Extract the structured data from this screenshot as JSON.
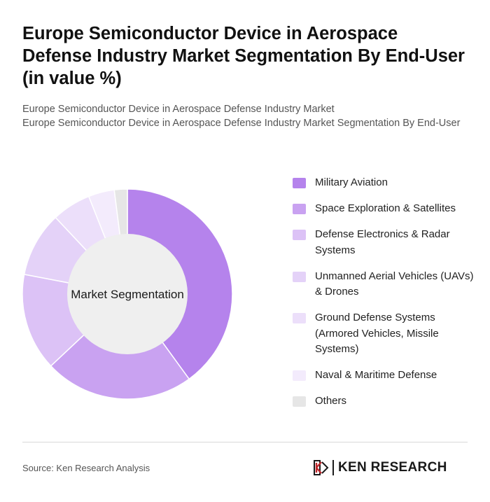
{
  "header": {
    "title": "Europe Semiconductor Device in Aerospace Defense Industry Market Segmentation By End-User (in value %)",
    "subtitle_line1": "Europe Semiconductor Device in Aerospace Defense Industry Market",
    "subtitle_line2": "Europe Semiconductor Device in Aerospace Defense Industry Market Segmentation By End-User"
  },
  "chart_data": {
    "type": "pie",
    "variant": "donut",
    "center_label": "Market Segmentation",
    "legend_position": "right",
    "slices": [
      {
        "name": "Military Aviation",
        "value": 40,
        "color": "#b583ec"
      },
      {
        "name": "Space Exploration & Satellites",
        "value": 23,
        "color": "#c9a2f1"
      },
      {
        "name": "Defense Electronics & Radar Systems",
        "value": 15,
        "color": "#dcc2f6"
      },
      {
        "name": "Unmanned Aerial Vehicles (UAVs) & Drones",
        "value": 10,
        "color": "#e4d2f8"
      },
      {
        "name": "Ground Defense Systems (Armored Vehicles, Missile Systems)",
        "value": 6,
        "color": "#ecdffa"
      },
      {
        "name": "Naval & Maritime Defense",
        "value": 4,
        "color": "#f3ebfc"
      },
      {
        "name": "Others",
        "value": 2,
        "color": "#e6e6e6"
      }
    ],
    "center_color": "#efefef"
  },
  "footer": {
    "source": "Source: Ken Research Analysis",
    "brand": "KEN RESEARCH"
  }
}
